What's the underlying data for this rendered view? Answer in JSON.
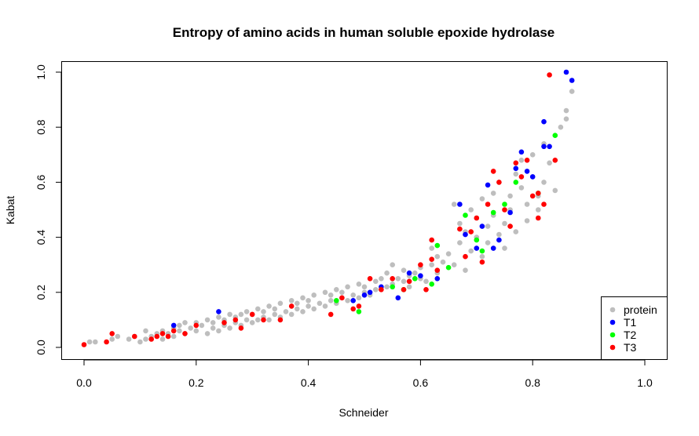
{
  "chart_data": {
    "type": "scatter",
    "title": "Entropy of amino acids in human soluble epoxide hydrolase",
    "xlabel": "Schneider",
    "ylabel": "Kabat",
    "xlim": [
      0.0,
      1.0
    ],
    "ylim": [
      0.0,
      1.0
    ],
    "x_ticks": [
      "0.0",
      "0.2",
      "0.4",
      "0.6",
      "0.8",
      "1.0"
    ],
    "y_ticks": [
      "0.0",
      "0.2",
      "0.4",
      "0.6",
      "0.8",
      "1.0"
    ],
    "grid": false,
    "legend_position": "bottom-right",
    "series": [
      {
        "name": "protein",
        "color": "#bebebe",
        "points": [
          [
            0.01,
            0.02
          ],
          [
            0.02,
            0.02
          ],
          [
            0.05,
            0.03
          ],
          [
            0.06,
            0.04
          ],
          [
            0.08,
            0.03
          ],
          [
            0.09,
            0.04
          ],
          [
            0.1,
            0.02
          ],
          [
            0.11,
            0.03
          ],
          [
            0.11,
            0.06
          ],
          [
            0.12,
            0.04
          ],
          [
            0.13,
            0.05
          ],
          [
            0.14,
            0.03
          ],
          [
            0.14,
            0.06
          ],
          [
            0.15,
            0.05
          ],
          [
            0.16,
            0.04
          ],
          [
            0.16,
            0.07
          ],
          [
            0.17,
            0.06
          ],
          [
            0.17,
            0.08
          ],
          [
            0.18,
            0.05
          ],
          [
            0.18,
            0.09
          ],
          [
            0.19,
            0.07
          ],
          [
            0.2,
            0.06
          ],
          [
            0.2,
            0.09
          ],
          [
            0.21,
            0.08
          ],
          [
            0.22,
            0.05
          ],
          [
            0.22,
            0.1
          ],
          [
            0.23,
            0.07
          ],
          [
            0.23,
            0.09
          ],
          [
            0.24,
            0.06
          ],
          [
            0.24,
            0.11
          ],
          [
            0.25,
            0.08
          ],
          [
            0.25,
            0.1
          ],
          [
            0.26,
            0.07
          ],
          [
            0.26,
            0.12
          ],
          [
            0.27,
            0.09
          ],
          [
            0.27,
            0.11
          ],
          [
            0.28,
            0.08
          ],
          [
            0.28,
            0.12
          ],
          [
            0.29,
            0.1
          ],
          [
            0.29,
            0.13
          ],
          [
            0.3,
            0.09
          ],
          [
            0.3,
            0.12
          ],
          [
            0.31,
            0.1
          ],
          [
            0.31,
            0.14
          ],
          [
            0.32,
            0.11
          ],
          [
            0.32,
            0.13
          ],
          [
            0.33,
            0.1
          ],
          [
            0.33,
            0.15
          ],
          [
            0.34,
            0.12
          ],
          [
            0.34,
            0.14
          ],
          [
            0.35,
            0.11
          ],
          [
            0.35,
            0.16
          ],
          [
            0.36,
            0.13
          ],
          [
            0.37,
            0.12
          ],
          [
            0.37,
            0.17
          ],
          [
            0.38,
            0.14
          ],
          [
            0.38,
            0.16
          ],
          [
            0.39,
            0.13
          ],
          [
            0.39,
            0.18
          ],
          [
            0.4,
            0.15
          ],
          [
            0.4,
            0.17
          ],
          [
            0.41,
            0.14
          ],
          [
            0.41,
            0.19
          ],
          [
            0.42,
            0.16
          ],
          [
            0.43,
            0.15
          ],
          [
            0.43,
            0.2
          ],
          [
            0.44,
            0.17
          ],
          [
            0.44,
            0.19
          ],
          [
            0.45,
            0.16
          ],
          [
            0.45,
            0.21
          ],
          [
            0.46,
            0.18
          ],
          [
            0.46,
            0.2
          ],
          [
            0.47,
            0.17
          ],
          [
            0.47,
            0.22
          ],
          [
            0.48,
            0.19
          ],
          [
            0.49,
            0.18
          ],
          [
            0.49,
            0.23
          ],
          [
            0.5,
            0.2
          ],
          [
            0.5,
            0.22
          ],
          [
            0.51,
            0.19
          ],
          [
            0.52,
            0.24
          ],
          [
            0.52,
            0.21
          ],
          [
            0.53,
            0.25
          ],
          [
            0.54,
            0.22
          ],
          [
            0.54,
            0.27
          ],
          [
            0.55,
            0.23
          ],
          [
            0.55,
            0.3
          ],
          [
            0.56,
            0.25
          ],
          [
            0.57,
            0.24
          ],
          [
            0.57,
            0.28
          ],
          [
            0.58,
            0.26
          ],
          [
            0.58,
            0.22
          ],
          [
            0.59,
            0.27
          ],
          [
            0.6,
            0.25
          ],
          [
            0.6,
            0.29
          ],
          [
            0.61,
            0.24
          ],
          [
            0.62,
            0.3
          ],
          [
            0.62,
            0.36
          ],
          [
            0.63,
            0.27
          ],
          [
            0.63,
            0.33
          ],
          [
            0.64,
            0.31
          ],
          [
            0.65,
            0.34
          ],
          [
            0.66,
            0.3
          ],
          [
            0.66,
            0.52
          ],
          [
            0.67,
            0.38
          ],
          [
            0.67,
            0.45
          ],
          [
            0.68,
            0.28
          ],
          [
            0.68,
            0.42
          ],
          [
            0.69,
            0.35
          ],
          [
            0.69,
            0.5
          ],
          [
            0.7,
            0.4
          ],
          [
            0.7,
            0.47
          ],
          [
            0.71,
            0.33
          ],
          [
            0.71,
            0.54
          ],
          [
            0.72,
            0.44
          ],
          [
            0.72,
            0.38
          ],
          [
            0.73,
            0.56
          ],
          [
            0.73,
            0.48
          ],
          [
            0.74,
            0.41
          ],
          [
            0.74,
            0.6
          ],
          [
            0.75,
            0.45
          ],
          [
            0.75,
            0.36
          ],
          [
            0.76,
            0.55
          ],
          [
            0.76,
            0.5
          ],
          [
            0.77,
            0.63
          ],
          [
            0.77,
            0.42
          ],
          [
            0.78,
            0.58
          ],
          [
            0.78,
            0.68
          ],
          [
            0.79,
            0.52
          ],
          [
            0.79,
            0.46
          ],
          [
            0.8,
            0.62
          ],
          [
            0.8,
            0.7
          ],
          [
            0.81,
            0.55
          ],
          [
            0.81,
            0.5
          ],
          [
            0.82,
            0.74
          ],
          [
            0.82,
            0.6
          ],
          [
            0.83,
            0.67
          ],
          [
            0.84,
            0.57
          ],
          [
            0.85,
            0.8
          ],
          [
            0.86,
            0.86
          ],
          [
            0.86,
            0.83
          ],
          [
            0.87,
            0.93
          ]
        ]
      },
      {
        "name": "T1",
        "color": "#0000ff",
        "points": [
          [
            0.16,
            0.08
          ],
          [
            0.24,
            0.13
          ],
          [
            0.48,
            0.17
          ],
          [
            0.5,
            0.19
          ],
          [
            0.51,
            0.2
          ],
          [
            0.53,
            0.22
          ],
          [
            0.56,
            0.18
          ],
          [
            0.58,
            0.27
          ],
          [
            0.6,
            0.26
          ],
          [
            0.63,
            0.25
          ],
          [
            0.67,
            0.52
          ],
          [
            0.68,
            0.41
          ],
          [
            0.7,
            0.36
          ],
          [
            0.71,
            0.44
          ],
          [
            0.72,
            0.59
          ],
          [
            0.73,
            0.36
          ],
          [
            0.74,
            0.39
          ],
          [
            0.76,
            0.49
          ],
          [
            0.77,
            0.65
          ],
          [
            0.78,
            0.71
          ],
          [
            0.79,
            0.64
          ],
          [
            0.8,
            0.62
          ],
          [
            0.82,
            0.82
          ],
          [
            0.82,
            0.73
          ],
          [
            0.83,
            0.73
          ],
          [
            0.86,
            1.0
          ],
          [
            0.87,
            0.97
          ]
        ]
      },
      {
        "name": "T2",
        "color": "#00ff00",
        "points": [
          [
            0.45,
            0.17
          ],
          [
            0.49,
            0.13
          ],
          [
            0.55,
            0.22
          ],
          [
            0.57,
            0.21
          ],
          [
            0.59,
            0.25
          ],
          [
            0.62,
            0.23
          ],
          [
            0.63,
            0.37
          ],
          [
            0.65,
            0.29
          ],
          [
            0.68,
            0.48
          ],
          [
            0.7,
            0.39
          ],
          [
            0.71,
            0.35
          ],
          [
            0.73,
            0.49
          ],
          [
            0.75,
            0.52
          ],
          [
            0.77,
            0.6
          ],
          [
            0.81,
            0.56
          ],
          [
            0.84,
            0.77
          ]
        ]
      },
      {
        "name": "T3",
        "color": "#ff0000",
        "points": [
          [
            0.0,
            0.01
          ],
          [
            0.04,
            0.02
          ],
          [
            0.05,
            0.05
          ],
          [
            0.09,
            0.04
          ],
          [
            0.12,
            0.03
          ],
          [
            0.13,
            0.04
          ],
          [
            0.14,
            0.05
          ],
          [
            0.15,
            0.04
          ],
          [
            0.16,
            0.06
          ],
          [
            0.18,
            0.05
          ],
          [
            0.2,
            0.08
          ],
          [
            0.25,
            0.09
          ],
          [
            0.27,
            0.1
          ],
          [
            0.28,
            0.07
          ],
          [
            0.3,
            0.12
          ],
          [
            0.32,
            0.1
          ],
          [
            0.35,
            0.1
          ],
          [
            0.37,
            0.15
          ],
          [
            0.44,
            0.12
          ],
          [
            0.46,
            0.18
          ],
          [
            0.48,
            0.14
          ],
          [
            0.49,
            0.15
          ],
          [
            0.51,
            0.25
          ],
          [
            0.53,
            0.21
          ],
          [
            0.55,
            0.25
          ],
          [
            0.57,
            0.21
          ],
          [
            0.58,
            0.24
          ],
          [
            0.6,
            0.3
          ],
          [
            0.61,
            0.21
          ],
          [
            0.62,
            0.32
          ],
          [
            0.62,
            0.39
          ],
          [
            0.63,
            0.28
          ],
          [
            0.67,
            0.43
          ],
          [
            0.68,
            0.33
          ],
          [
            0.69,
            0.42
          ],
          [
            0.7,
            0.47
          ],
          [
            0.71,
            0.31
          ],
          [
            0.72,
            0.52
          ],
          [
            0.73,
            0.64
          ],
          [
            0.74,
            0.6
          ],
          [
            0.75,
            0.5
          ],
          [
            0.76,
            0.44
          ],
          [
            0.77,
            0.67
          ],
          [
            0.78,
            0.62
          ],
          [
            0.79,
            0.68
          ],
          [
            0.8,
            0.55
          ],
          [
            0.81,
            0.47
          ],
          [
            0.81,
            0.56
          ],
          [
            0.82,
            0.52
          ],
          [
            0.83,
            0.99
          ],
          [
            0.84,
            0.68
          ]
        ]
      }
    ]
  }
}
